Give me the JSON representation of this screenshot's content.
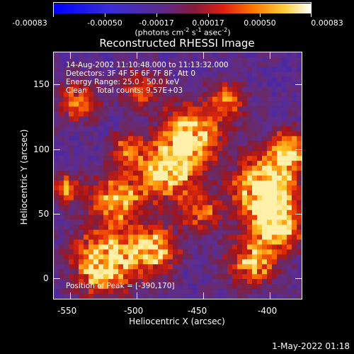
{
  "colorbar": {
    "tick_labels": [
      "-0.00083",
      "-0.00050",
      "-0.00017",
      "0.00017",
      "0.00050",
      "0.00083"
    ],
    "units_text": "(photons cm",
    "units_exp1": "-2",
    "units_mid": " s",
    "units_exp2": "-1",
    "units_mid2": " asec",
    "units_exp3": "-2",
    "units_end": ")"
  },
  "title": "Reconstructed RHESSI Image",
  "info": {
    "line1": "14-Aug-2002 11:10:48.000 to 11:13:32.000",
    "line2": "Detectors: 3F 4F 5F 6F 7F 8F, Att 0",
    "line3": "Energy Range: 25.0 - 50.0 keV",
    "line4": "Clean    Total counts: 9.57E+03",
    "peak": "Position of Peak = [-390,170]"
  },
  "axes": {
    "x_label": "Heliocentric X (arcsec)",
    "y_label": "Heliocentric Y (arcsec)",
    "x_ticks": [
      "-550",
      "-500",
      "-450",
      "-400"
    ],
    "y_ticks": [
      "0",
      "50",
      "100",
      "150"
    ]
  },
  "footer": "1-May-2022 01:18",
  "colors": {
    "background": "#000000",
    "low": "#0000ff",
    "mid": "#6a2fa0",
    "high": "#ffffff"
  }
}
